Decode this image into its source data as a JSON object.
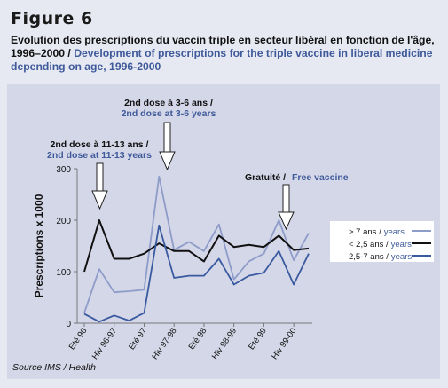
{
  "figure": {
    "label": "Figure 6",
    "caption_fr": "Evolution des prescriptions du vaccin triple en secteur libéral en fonction de l'âge, 1996–2000",
    "caption_sep": " / ",
    "caption_en": "Development of prescriptions for the triple vaccine in liberal medicine depending on age, 1996-2000",
    "source": "Source IMS / Health"
  },
  "colors": {
    "dark": "#111111",
    "light_blue": "#8e9cc9",
    "mid_blue": "#3a5aa0",
    "panel": "#d4d7e8",
    "page": "#e6e8f2"
  },
  "annotations": [
    {
      "fr": "2nd dose à 11-13 ans /",
      "en": "2nd dose at 11-13 years"
    },
    {
      "fr": "2nd dose à 3-6 ans /",
      "en": "2nd dose at 3-6 years"
    },
    {
      "fr": "Gratuité /",
      "en": "Free vaccine"
    }
  ],
  "chart_data": {
    "type": "line",
    "ylabel": "Prescriptions x 1000",
    "ylim": [
      0,
      300
    ],
    "yticks": [
      0,
      100,
      200,
      300
    ],
    "grid": false,
    "legend_position": "right",
    "xtick_labels": [
      "Eté 96",
      "Hiv 96-97",
      "Eté 97",
      "Hiv 97-98",
      "Eté 98",
      "Hiv 98-99",
      "Eté 99",
      "Hiv 99-00"
    ],
    "series": [
      {
        "label": "> 7 ans /",
        "label_en": "years",
        "color": "#8e9cc9",
        "values": [
          20,
          105,
          60,
          62,
          65,
          285,
          142,
          158,
          140,
          192,
          85,
          120,
          135,
          200,
          122,
          175
        ]
      },
      {
        "label": "< 2,5 ans /",
        "label_en": "years",
        "color": "#111111",
        "values": [
          100,
          200,
          125,
          125,
          135,
          155,
          140,
          140,
          120,
          170,
          148,
          152,
          148,
          170,
          142,
          145
        ]
      },
      {
        "label": "2,5-7 ans /",
        "label_en": "years",
        "color": "#3a5aa0",
        "values": [
          18,
          3,
          15,
          5,
          20,
          190,
          88,
          92,
          92,
          125,
          75,
          92,
          98,
          140,
          75,
          135
        ]
      }
    ]
  }
}
